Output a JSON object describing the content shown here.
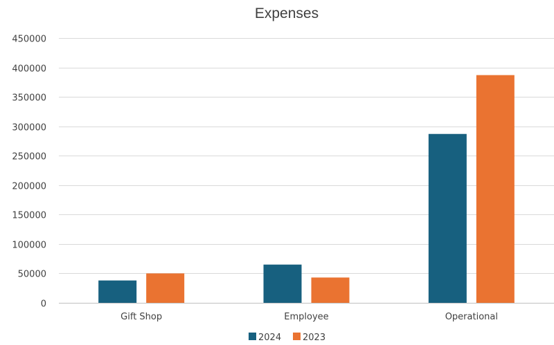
{
  "chart_data": {
    "type": "bar",
    "title": "Expenses",
    "xlabel": "",
    "ylabel": "",
    "categories": [
      "Gift Shop",
      "Employee",
      "Operational"
    ],
    "series": [
      {
        "name": "2024",
        "color": "#17607f",
        "values": [
          38000,
          65000,
          287000
        ]
      },
      {
        "name": "2023",
        "color": "#ea7331",
        "values": [
          50000,
          43000,
          387000
        ]
      }
    ],
    "ylim": [
      0,
      450000
    ],
    "yticks": [
      0,
      50000,
      100000,
      150000,
      200000,
      250000,
      300000,
      350000,
      400000,
      450000
    ],
    "ytick_labels": [
      "0",
      "50000",
      "100000",
      "150000",
      "200000",
      "250000",
      "300000",
      "350000",
      "400000",
      "450000"
    ],
    "grid": true,
    "legend_position": "bottom"
  }
}
